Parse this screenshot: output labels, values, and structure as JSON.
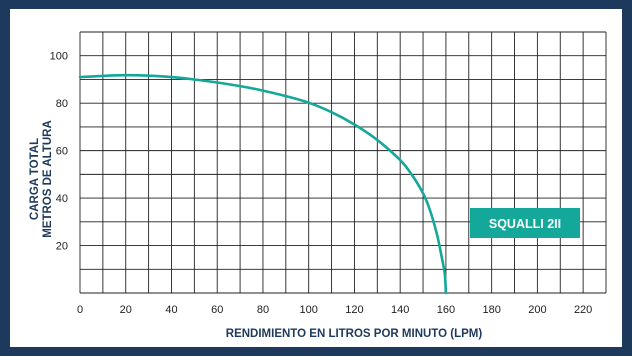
{
  "chart_data": {
    "type": "line",
    "title": "",
    "xlabel": "RENDIMIENTO EN LITROS POR MINUTO (LPM)",
    "ylabel_lines": [
      "CARGA TOTAL",
      "METROS DE ALTURA"
    ],
    "xlim": [
      0,
      230
    ],
    "ylim": [
      0,
      110
    ],
    "xticks": [
      0,
      20,
      40,
      60,
      80,
      100,
      120,
      140,
      160,
      180,
      200,
      220
    ],
    "yticks": [
      20,
      40,
      60,
      80,
      100
    ],
    "x_grid_step": 10,
    "y_grid_step": 10,
    "grid": true,
    "series": [
      {
        "name": "SQUALLI 2II",
        "color": "#14a89a",
        "points": [
          [
            0,
            91
          ],
          [
            10,
            91.5
          ],
          [
            20,
            91.8
          ],
          [
            30,
            91.6
          ],
          [
            40,
            91
          ],
          [
            50,
            90
          ],
          [
            60,
            88.7
          ],
          [
            70,
            87.2
          ],
          [
            80,
            85.3
          ],
          [
            90,
            83
          ],
          [
            100,
            80.2
          ],
          [
            110,
            76.2
          ],
          [
            120,
            71
          ],
          [
            130,
            64.5
          ],
          [
            140,
            56
          ],
          [
            145,
            50
          ],
          [
            150,
            42
          ],
          [
            153,
            35
          ],
          [
            156,
            25
          ],
          [
            158,
            16
          ],
          [
            159.5,
            8
          ],
          [
            160,
            0
          ]
        ]
      }
    ],
    "legend": {
      "label": "SQUALLI 2II",
      "background": "#14a89a",
      "text_color": "#ffffff",
      "placement": "lower-right"
    }
  }
}
